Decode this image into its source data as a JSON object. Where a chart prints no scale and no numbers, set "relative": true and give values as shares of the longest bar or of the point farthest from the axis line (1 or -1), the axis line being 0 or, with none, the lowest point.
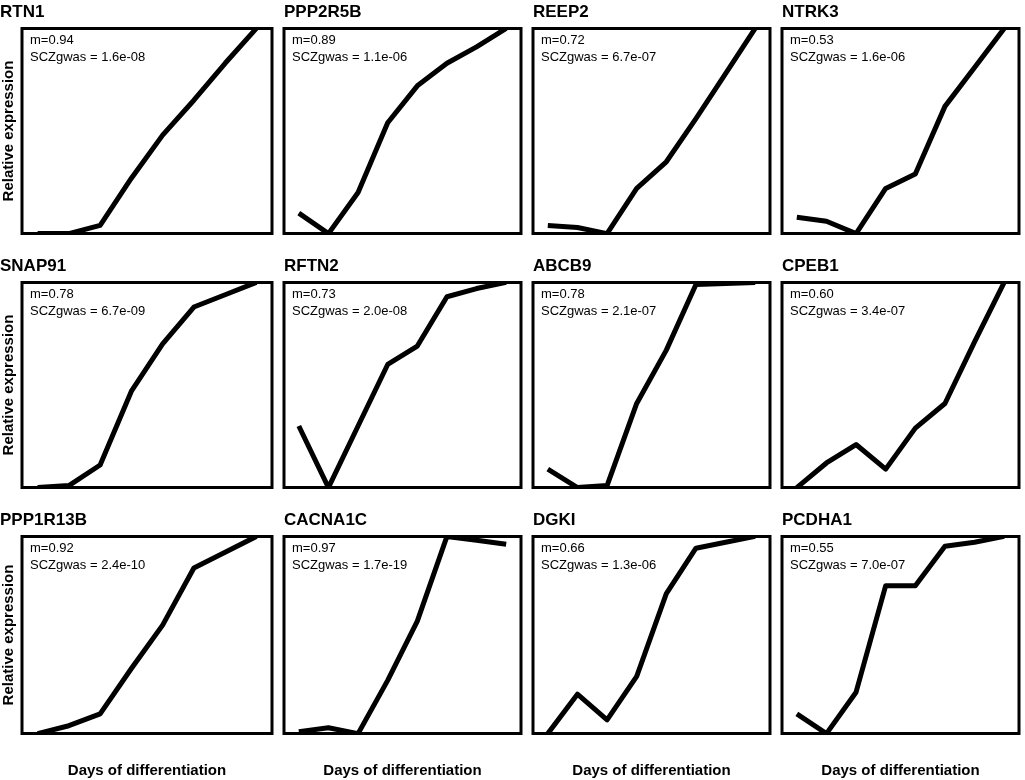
{
  "chart_data": [
    {
      "type": "line",
      "title": "RTN1",
      "ylabel": "Relative expression",
      "relative": true,
      "grid": false,
      "legend": false,
      "marker": "none",
      "line_style": "solid",
      "annotations": [
        "m=0.94",
        "SCZgwas = 1.6e-08"
      ],
      "categories": [
        null,
        null,
        null,
        null,
        null,
        null,
        null,
        null
      ],
      "series": [
        {
          "color": "#000000",
          "values": [
            0,
            0,
            0.04,
            0.27,
            0.48,
            0.65,
            0.83,
            1
          ]
        }
      ]
    },
    {
      "type": "line",
      "title": "PPP2R5B",
      "relative": true,
      "grid": false,
      "legend": false,
      "marker": "none",
      "line_style": "solid",
      "annotations": [
        "m=0.89",
        "SCZgwas = 1.1e-06"
      ],
      "categories": [
        null,
        null,
        null,
        null,
        null,
        null,
        null,
        null
      ],
      "series": [
        {
          "color": "#000000",
          "values": [
            0.1,
            0,
            0.2,
            0.54,
            0.72,
            0.83,
            0.91,
            1
          ]
        }
      ]
    },
    {
      "type": "line",
      "title": "REEP2",
      "relative": true,
      "grid": false,
      "legend": false,
      "marker": "none",
      "line_style": "solid",
      "annotations": [
        "m=0.72",
        "SCZgwas = 6.7e-07"
      ],
      "categories": [
        null,
        null,
        null,
        null,
        null,
        null,
        null,
        null
      ],
      "series": [
        {
          "color": "#000000",
          "values": [
            0.04,
            0.03,
            0,
            0.22,
            0.35,
            0.56,
            0.78,
            1
          ]
        }
      ]
    },
    {
      "type": "line",
      "title": "NTRK3",
      "relative": true,
      "grid": false,
      "legend": false,
      "marker": "none",
      "line_style": "solid",
      "annotations": [
        "m=0.53",
        "SCZgwas = 1.6e-06"
      ],
      "categories": [
        null,
        null,
        null,
        null,
        null,
        null,
        null,
        null
      ],
      "series": [
        {
          "color": "#000000",
          "values": [
            0.08,
            0.06,
            0,
            0.22,
            0.29,
            0.62,
            0.81,
            1
          ]
        }
      ]
    },
    {
      "type": "line",
      "title": "SNAP91",
      "ylabel": "Relative expression",
      "relative": true,
      "grid": false,
      "legend": false,
      "marker": "none",
      "line_style": "solid",
      "annotations": [
        "m=0.78",
        "SCZgwas = 6.7e-09"
      ],
      "categories": [
        null,
        null,
        null,
        null,
        null,
        null,
        null,
        null
      ],
      "series": [
        {
          "color": "#000000",
          "values": [
            0,
            0.01,
            0.11,
            0.47,
            0.7,
            0.88,
            0.94,
            1
          ]
        }
      ]
    },
    {
      "type": "line",
      "title": "RFTN2",
      "relative": true,
      "grid": false,
      "legend": false,
      "marker": "none",
      "line_style": "solid",
      "annotations": [
        "m=0.73",
        "SCZgwas = 2.0e-08"
      ],
      "categories": [
        null,
        null,
        null,
        null,
        null,
        null,
        null,
        null
      ],
      "series": [
        {
          "color": "#000000",
          "values": [
            0.3,
            0,
            0.3,
            0.6,
            0.69,
            0.93,
            0.97,
            1
          ]
        }
      ]
    },
    {
      "type": "line",
      "title": "ABCB9",
      "relative": true,
      "grid": false,
      "legend": false,
      "marker": "none",
      "line_style": "solid",
      "annotations": [
        "m=0.78",
        "SCZgwas = 2.1e-07"
      ],
      "categories": [
        null,
        null,
        null,
        null,
        null,
        null,
        null,
        null
      ],
      "series": [
        {
          "color": "#000000",
          "values": [
            0.09,
            0,
            0.01,
            0.41,
            0.67,
            0.99,
            0.995,
            1
          ]
        }
      ]
    },
    {
      "type": "line",
      "title": "CPEB1",
      "relative": true,
      "grid": false,
      "legend": false,
      "marker": "none",
      "line_style": "solid",
      "annotations": [
        "m=0.60",
        "SCZgwas = 3.4e-07"
      ],
      "categories": [
        null,
        null,
        null,
        null,
        null,
        null,
        null,
        null
      ],
      "series": [
        {
          "color": "#000000",
          "values": [
            0,
            0.12,
            0.21,
            0.09,
            0.29,
            0.41,
            0.71,
            1
          ]
        }
      ]
    },
    {
      "type": "line",
      "title": "PPP1R13B",
      "ylabel": "Relative expression",
      "xlabel": "Days of differentiation",
      "relative": true,
      "grid": false,
      "legend": false,
      "marker": "none",
      "line_style": "solid",
      "annotations": [
        "m=0.92",
        "SCZgwas = 2.4e-10"
      ],
      "categories": [
        null,
        null,
        null,
        null,
        null,
        null,
        null,
        null
      ],
      "series": [
        {
          "color": "#000000",
          "values": [
            0,
            0.04,
            0.1,
            0.33,
            0.55,
            0.84,
            0.92,
            1
          ]
        }
      ]
    },
    {
      "type": "line",
      "title": "CACNA1C",
      "xlabel": "Days of differentiation",
      "relative": true,
      "grid": false,
      "legend": false,
      "marker": "none",
      "line_style": "solid",
      "annotations": [
        "m=0.97",
        "SCZgwas = 1.7e-19"
      ],
      "categories": [
        null,
        null,
        null,
        null,
        null,
        null,
        null,
        null
      ],
      "series": [
        {
          "color": "#000000",
          "values": [
            0.01,
            0.03,
            0,
            0.27,
            0.57,
            1,
            0.98,
            0.96
          ]
        }
      ]
    },
    {
      "type": "line",
      "title": "DGKI",
      "xlabel": "Days of differentiation",
      "relative": true,
      "grid": false,
      "legend": false,
      "marker": "none",
      "line_style": "solid",
      "annotations": [
        "m=0.66",
        "SCZgwas = 1.3e-06"
      ],
      "categories": [
        null,
        null,
        null,
        null,
        null,
        null,
        null,
        null
      ],
      "series": [
        {
          "color": "#000000",
          "values": [
            0,
            0.2,
            0.07,
            0.29,
            0.71,
            0.94,
            0.97,
            1
          ]
        }
      ]
    },
    {
      "type": "line",
      "title": "PCDHA1",
      "xlabel": "Days of differentiation",
      "relative": true,
      "grid": false,
      "legend": false,
      "marker": "none",
      "line_style": "solid",
      "annotations": [
        "m=0.55",
        "SCZgwas = 7.0e-07"
      ],
      "categories": [
        null,
        null,
        null,
        null,
        null,
        null,
        null,
        null
      ],
      "series": [
        {
          "color": "#000000",
          "values": [
            0.1,
            0,
            0.21,
            0.75,
            0.75,
            0.95,
            0.97,
            1
          ]
        }
      ]
    }
  ]
}
